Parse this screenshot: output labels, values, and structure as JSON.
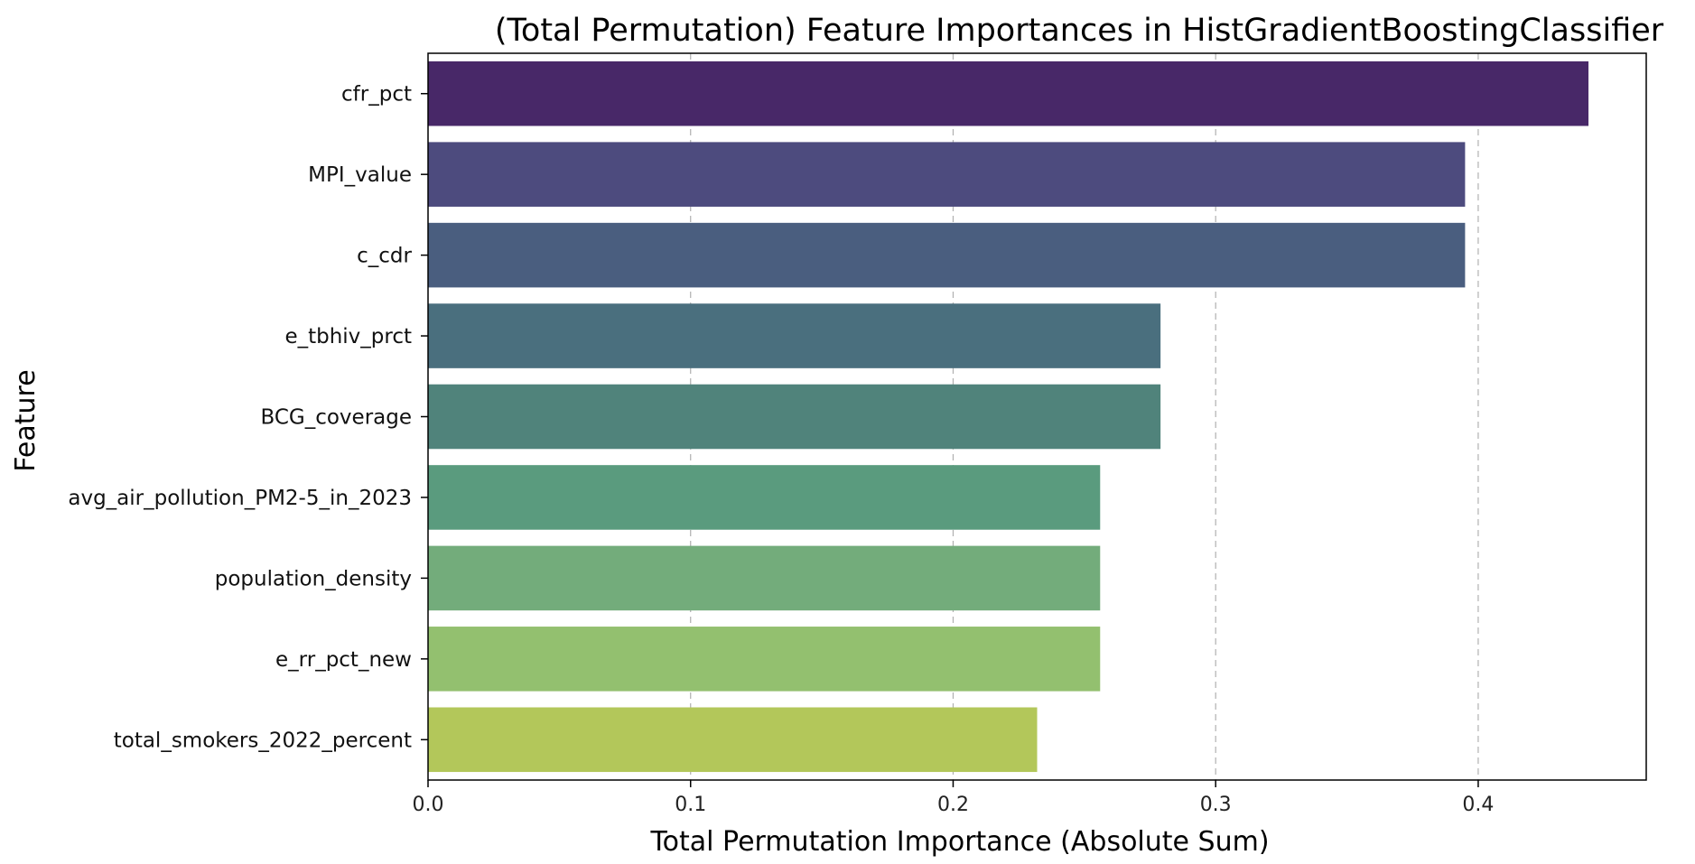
{
  "chart_data": {
    "type": "bar",
    "orientation": "horizontal",
    "title": "(Total Permutation) Feature Importances in HistGradientBoostingClassifier",
    "xlabel": "Total Permutation Importance (Absolute Sum)",
    "ylabel": "Feature",
    "xlim": [
      0,
      0.464
    ],
    "xticks": [
      0.0,
      0.1,
      0.2,
      0.3,
      0.4
    ],
    "xtick_labels": [
      "0.0",
      "0.1",
      "0.2",
      "0.3",
      "0.4"
    ],
    "grid": "x-dashed",
    "categories": [
      "cfr_pct",
      "MPI_value",
      "c_cdr",
      "e_tbhiv_prct",
      "BCG_coverage",
      "avg_air_pollution_PM2-5_in_2023",
      "population_density",
      "e_rr_pct_new",
      "total_smokers_2022_percent"
    ],
    "values": [
      0.442,
      0.395,
      0.395,
      0.279,
      0.279,
      0.256,
      0.256,
      0.256,
      0.232
    ],
    "colors": [
      "#482868",
      "#4d4b7e",
      "#4a5e7f",
      "#4a6f7e",
      "#50837b",
      "#5a9b7e",
      "#73ac7b",
      "#93c06f",
      "#b3c75a"
    ]
  }
}
